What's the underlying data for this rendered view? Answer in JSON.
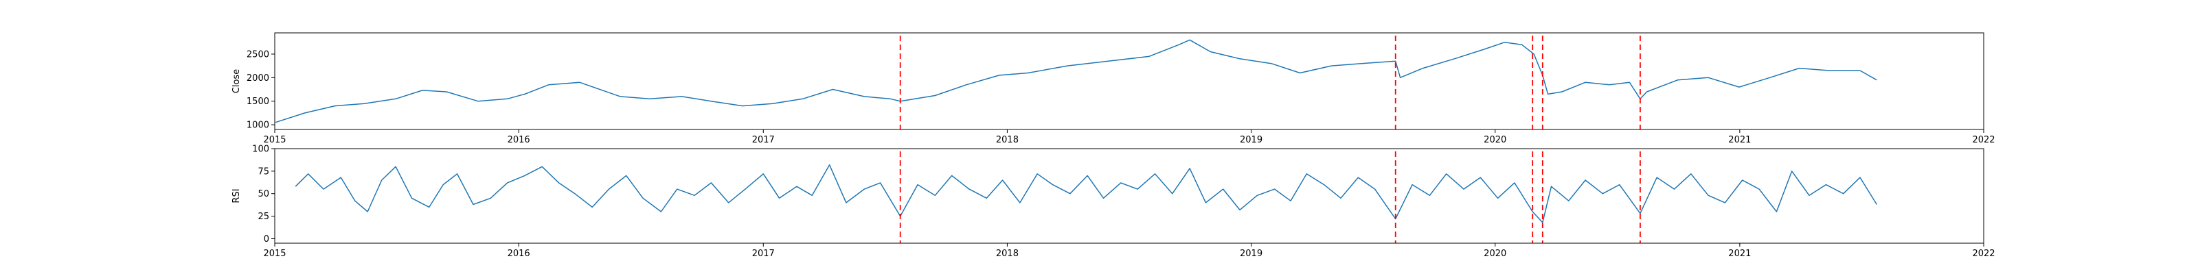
{
  "chart_data": [
    {
      "type": "line",
      "ylabel": "Close",
      "xlim": [
        "2015-01-01",
        "2022-01-01"
      ],
      "ylim": [
        900,
        2950
      ],
      "xticks": [
        "2015-01-01",
        "2016-01-01",
        "2017-01-01",
        "2018-01-01",
        "2019-01-01",
        "2020-01-01",
        "2021-01-01",
        "2022-01-01"
      ],
      "xtick_labels": [
        "2015",
        "2016",
        "2017",
        "2018",
        "2019",
        "2020",
        "2021",
        "2022"
      ],
      "yticks": [
        1000,
        1500,
        2000,
        2500
      ],
      "ytick_labels": [
        "1000",
        "1500",
        "2000",
        "2500"
      ],
      "grid": false,
      "series": [
        {
          "color": "#1f77b4",
          "x": [
            "2015-01-02",
            "2015-02-15",
            "2015-04-01",
            "2015-05-15",
            "2015-07-01",
            "2015-08-10",
            "2015-09-15",
            "2015-11-01",
            "2015-12-15",
            "2016-01-10",
            "2016-02-15",
            "2016-04-01",
            "2016-06-01",
            "2016-07-15",
            "2016-09-01",
            "2016-10-15",
            "2016-12-01",
            "2017-01-15",
            "2017-03-01",
            "2017-04-15",
            "2017-06-01",
            "2017-07-10",
            "2017-07-25",
            "2017-09-15",
            "2017-11-01",
            "2017-12-20",
            "2018-02-01",
            "2018-04-01",
            "2018-06-01",
            "2018-08-01",
            "2018-09-15",
            "2018-10-01",
            "2018-11-01",
            "2018-12-15",
            "2019-01-31",
            "2019-03-15",
            "2019-05-01",
            "2019-06-15",
            "2019-08-05",
            "2019-08-12",
            "2019-09-15",
            "2019-11-01",
            "2019-12-15",
            "2020-01-15",
            "2020-02-10",
            "2020-02-28",
            "2020-03-12",
            "2020-03-20",
            "2020-04-10",
            "2020-05-15",
            "2020-06-20",
            "2020-07-20",
            "2020-08-05",
            "2020-08-15",
            "2020-09-30",
            "2020-11-15",
            "2020-12-31",
            "2021-02-15",
            "2021-03-31",
            "2021-05-15",
            "2021-06-30",
            "2021-07-25"
          ],
          "values": [
            1050,
            1250,
            1400,
            1450,
            1550,
            1730,
            1700,
            1500,
            1550,
            1650,
            1850,
            1900,
            1600,
            1550,
            1600,
            1500,
            1400,
            1450,
            1550,
            1750,
            1600,
            1550,
            1500,
            1620,
            1850,
            2050,
            2100,
            2250,
            2350,
            2450,
            2700,
            2800,
            2550,
            2400,
            2300,
            2100,
            2250,
            2300,
            2350,
            2000,
            2200,
            2400,
            2600,
            2750,
            2700,
            2500,
            2050,
            1650,
            1700,
            1900,
            1850,
            1900,
            1550,
            1700,
            1950,
            2000,
            1800,
            2000,
            2200,
            2150,
            2150,
            1950
          ]
        }
      ],
      "vlines": {
        "color": "#ff0000",
        "x": [
          "2017-07-25",
          "2019-08-05",
          "2020-02-26",
          "2020-03-12",
          "2020-08-05"
        ]
      }
    },
    {
      "type": "line",
      "ylabel": "RSI",
      "xlim": [
        "2015-01-01",
        "2022-01-01"
      ],
      "ylim": [
        -5,
        100
      ],
      "xticks": [
        "2015-01-01",
        "2016-01-01",
        "2017-01-01",
        "2018-01-01",
        "2019-01-01",
        "2020-01-01",
        "2021-01-01",
        "2022-01-01"
      ],
      "xtick_labels": [
        "2015",
        "2016",
        "2017",
        "2018",
        "2019",
        "2020",
        "2021",
        "2022"
      ],
      "yticks": [
        0,
        25,
        50,
        75,
        100
      ],
      "ytick_labels": [
        "0",
        "25",
        "50",
        "75",
        "100"
      ],
      "grid": false,
      "series": [
        {
          "color": "#1f77b4",
          "x": [
            "2015-02-01",
            "2015-02-20",
            "2015-03-15",
            "2015-04-10",
            "2015-05-01",
            "2015-05-20",
            "2015-06-10",
            "2015-07-01",
            "2015-07-25",
            "2015-08-20",
            "2015-09-10",
            "2015-10-01",
            "2015-10-25",
            "2015-11-20",
            "2015-12-15",
            "2016-01-10",
            "2016-02-05",
            "2016-03-01",
            "2016-03-25",
            "2016-04-20",
            "2016-05-15",
            "2016-06-10",
            "2016-07-05",
            "2016-08-01",
            "2016-08-25",
            "2016-09-20",
            "2016-10-15",
            "2016-11-10",
            "2016-12-05",
            "2017-01-01",
            "2017-01-25",
            "2017-02-20",
            "2017-03-15",
            "2017-04-10",
            "2017-05-05",
            "2017-06-01",
            "2017-06-25",
            "2017-07-25",
            "2017-08-20",
            "2017-09-15",
            "2017-10-10",
            "2017-11-05",
            "2017-12-01",
            "2017-12-25",
            "2018-01-20",
            "2018-02-15",
            "2018-03-10",
            "2018-04-05",
            "2018-05-01",
            "2018-05-25",
            "2018-06-20",
            "2018-07-15",
            "2018-08-10",
            "2018-09-05",
            "2018-10-01",
            "2018-10-25",
            "2018-11-20",
            "2018-12-15",
            "2019-01-10",
            "2019-02-05",
            "2019-03-01",
            "2019-03-25",
            "2019-04-20",
            "2019-05-15",
            "2019-06-10",
            "2019-07-05",
            "2019-08-05",
            "2019-08-30",
            "2019-09-25",
            "2019-10-20",
            "2019-11-15",
            "2019-12-10",
            "2020-01-05",
            "2020-01-30",
            "2020-02-26",
            "2020-03-12",
            "2020-03-25",
            "2020-04-20",
            "2020-05-15",
            "2020-06-10",
            "2020-07-05",
            "2020-08-05",
            "2020-08-30",
            "2020-09-25",
            "2020-10-20",
            "2020-11-15",
            "2020-12-10",
            "2021-01-05",
            "2021-01-30",
            "2021-02-25",
            "2021-03-20",
            "2021-04-15",
            "2021-05-10",
            "2021-06-05",
            "2021-06-30",
            "2021-07-25"
          ],
          "values": [
            58,
            72,
            55,
            68,
            42,
            30,
            65,
            80,
            45,
            35,
            60,
            72,
            38,
            45,
            62,
            70,
            80,
            62,
            50,
            35,
            55,
            70,
            45,
            30,
            55,
            48,
            62,
            40,
            55,
            72,
            45,
            58,
            48,
            82,
            40,
            55,
            62,
            25,
            60,
            48,
            70,
            55,
            45,
            65,
            40,
            72,
            60,
            50,
            70,
            45,
            62,
            55,
            72,
            50,
            78,
            40,
            55,
            32,
            48,
            55,
            42,
            72,
            60,
            45,
            68,
            55,
            22,
            60,
            48,
            72,
            55,
            68,
            45,
            62,
            30,
            18,
            58,
            42,
            65,
            50,
            60,
            28,
            68,
            55,
            72,
            48,
            40,
            65,
            55,
            30,
            75,
            48,
            60,
            50,
            68,
            38
          ]
        }
      ],
      "vlines": {
        "color": "#ff0000",
        "x": [
          "2017-07-25",
          "2019-08-05",
          "2020-02-26",
          "2020-03-12",
          "2020-08-05"
        ]
      }
    }
  ]
}
